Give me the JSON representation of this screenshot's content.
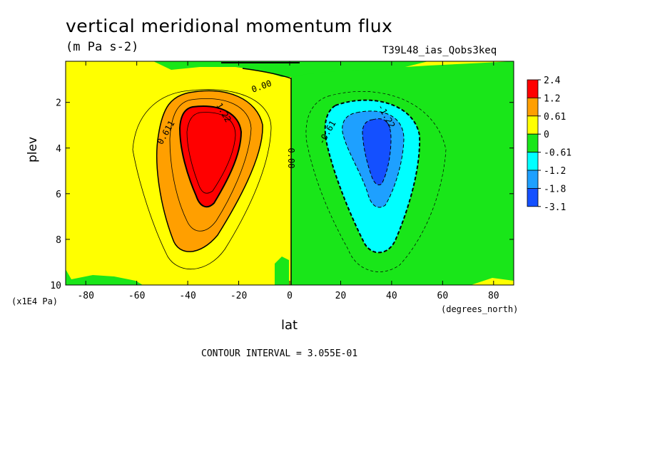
{
  "chart_data": {
    "type": "heatmap",
    "title": "vertical meridional momentum flux",
    "units": "(m Pa s-2)",
    "dataset": "T39L48_ias_Qobs3keq",
    "xlabel": "lat",
    "xunits": "(degrees_north)",
    "ylabel": "plev",
    "yunits": "(x1E4 Pa)",
    "x_ticks": [
      "-80",
      "-60",
      "-40",
      "-20",
      "0",
      "20",
      "40",
      "60",
      "80"
    ],
    "y_ticks": [
      "2",
      "4",
      "6",
      "8",
      "10"
    ],
    "xlim": [
      -87.9,
      87.9
    ],
    "ylim": [
      0.2,
      10
    ],
    "y_inverted": true,
    "contour_interval": "CONTOUR INTERVAL = 3.055E-01",
    "contour_labels": [
      "0.00",
      "0.611",
      "1.22",
      "0.00",
      "-0.61",
      "-1.22"
    ],
    "colorbar": {
      "labels": [
        "2.4",
        "1.2",
        "0.61",
        "0",
        "-0.61",
        "-1.2",
        "-1.8",
        "-3.1"
      ],
      "colors": [
        "#ff0000",
        "#ff9f00",
        "#ffff00",
        "#19e619",
        "#00ffff",
        "#1ea0ff",
        "#1450ff"
      ]
    },
    "features": [
      {
        "name": "positive-maximum",
        "lat": -33,
        "plev": 4.0,
        "value": 2.4
      },
      {
        "name": "negative-minimum",
        "lat": 33,
        "plev": 4.0,
        "value": -3.1
      }
    ]
  }
}
